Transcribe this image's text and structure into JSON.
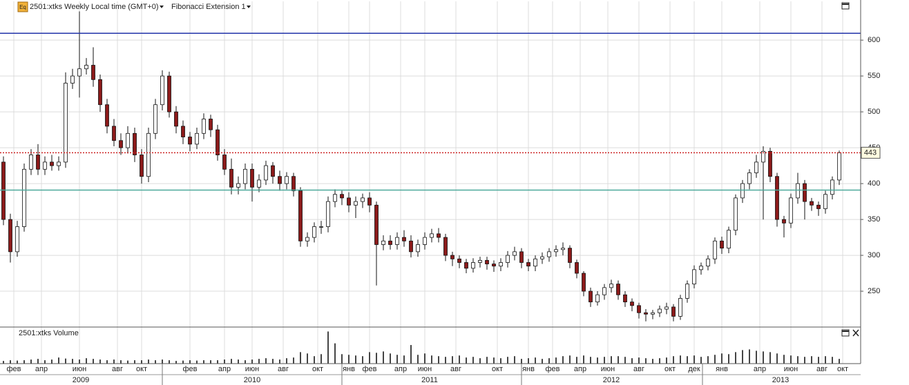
{
  "chart_data": {
    "type": "candlestick",
    "icon": "Eq",
    "title": "2501:xtks Weekly Local time (GMT+0)",
    "indicator": "Fibonacci Extension 1",
    "volume_title": "2501:xtks Volume",
    "up_color": "#ffffff",
    "down_color": "#8b1a1a",
    "volume_color": "#444444",
    "grid": true,
    "ylim": [
      201,
      654
    ],
    "yticks": [
      250,
      300,
      350,
      400,
      450,
      500,
      550,
      600
    ],
    "xlim": [
      0,
      249.2
    ],
    "xticks": [
      {
        "value": 4,
        "label": "фев"
      },
      {
        "value": 12,
        "label": "апр"
      },
      {
        "value": 23,
        "label": "июн"
      },
      {
        "value": 34,
        "label": "авг"
      },
      {
        "value": 41,
        "label": "окт"
      },
      {
        "value": 55,
        "label": "фев"
      },
      {
        "value": 65,
        "label": "апр"
      },
      {
        "value": 73,
        "label": "июн"
      },
      {
        "value": 82,
        "label": "авг"
      },
      {
        "value": 92,
        "label": "окт"
      },
      {
        "value": 101,
        "label": "янв"
      },
      {
        "value": 107,
        "label": "фев"
      },
      {
        "value": 116,
        "label": "апр"
      },
      {
        "value": 123,
        "label": "июн"
      },
      {
        "value": 132,
        "label": "авг"
      },
      {
        "value": 144,
        "label": "окт"
      },
      {
        "value": 153,
        "label": "янв"
      },
      {
        "value": 160,
        "label": "фев"
      },
      {
        "value": 168,
        "label": "апр"
      },
      {
        "value": 176,
        "label": "июн"
      },
      {
        "value": 185,
        "label": "авг"
      },
      {
        "value": 194,
        "label": "окт"
      },
      {
        "value": 201,
        "label": "дек"
      },
      {
        "value": 209,
        "label": "янв"
      },
      {
        "value": 220,
        "label": "апр"
      },
      {
        "value": 229,
        "label": "июн"
      },
      {
        "value": 238,
        "label": "авг"
      },
      {
        "value": 244,
        "label": "окт"
      }
    ],
    "year_labels": [
      {
        "value": 23.4,
        "label": "2009"
      },
      {
        "value": 73,
        "label": "2010"
      },
      {
        "value": 124.4,
        "label": "2011"
      },
      {
        "value": 177,
        "label": "2012"
      },
      {
        "value": 226,
        "label": "2013"
      }
    ],
    "year_breaks": [
      47,
      99,
      151,
      203.4
    ],
    "levels": [
      {
        "value": 609.5,
        "color": "#2233aa",
        "style": "solid"
      },
      {
        "value": 443,
        "color": "#cc2222",
        "style": "dotted"
      },
      {
        "value": 391,
        "color": "#4aa89a",
        "style": "solid"
      }
    ],
    "open": [
      430,
      350,
      305,
      340,
      420,
      440,
      420,
      430,
      425,
      430,
      540,
      550,
      560,
      565,
      545,
      510,
      480,
      460,
      450,
      470,
      440,
      410,
      470,
      510,
      550,
      500,
      480,
      465,
      455,
      470,
      490,
      475,
      440,
      420,
      395,
      400,
      420,
      395,
      405,
      425,
      410,
      400,
      410,
      390,
      320,
      325,
      340,
      340,
      375,
      385,
      380,
      370,
      375,
      380,
      370,
      315,
      320,
      315,
      325,
      320,
      305,
      315,
      325,
      330,
      325,
      300,
      295,
      290,
      282,
      290,
      293,
      288,
      285,
      290,
      300,
      305,
      290,
      285,
      295,
      298,
      305,
      308,
      310,
      290,
      275,
      250,
      235,
      245,
      255,
      260,
      245,
      235,
      230,
      220,
      218,
      220,
      225,
      228,
      215,
      240,
      260,
      280,
      285,
      295,
      320,
      310,
      335,
      380,
      400,
      415,
      430,
      445,
      410,
      350,
      345,
      380,
      400,
      375,
      370,
      365,
      385,
      405
    ],
    "high": [
      438,
      358,
      348,
      428,
      448,
      455,
      438,
      440,
      438,
      555,
      560,
      640,
      575,
      590,
      552,
      518,
      490,
      470,
      480,
      478,
      448,
      478,
      518,
      558,
      556,
      508,
      488,
      472,
      478,
      498,
      496,
      482,
      448,
      435,
      410,
      428,
      428,
      413,
      432,
      430,
      418,
      416,
      415,
      395,
      332,
      346,
      348,
      382,
      392,
      390,
      388,
      382,
      386,
      388,
      375,
      328,
      328,
      332,
      335,
      328,
      322,
      332,
      337,
      338,
      330,
      305,
      300,
      295,
      296,
      298,
      298,
      293,
      296,
      306,
      312,
      310,
      295,
      300,
      304,
      310,
      314,
      318,
      314,
      294,
      278,
      255,
      250,
      260,
      266,
      265,
      250,
      240,
      234,
      225,
      224,
      230,
      234,
      232,
      245,
      265,
      286,
      290,
      300,
      325,
      326,
      340,
      385,
      405,
      420,
      440,
      452,
      450,
      415,
      355,
      386,
      415,
      405,
      380,
      375,
      390,
      410,
      446
    ],
    "low": [
      342,
      290,
      298,
      333,
      412,
      412,
      412,
      418,
      418,
      422,
      532,
      520,
      552,
      535,
      500,
      470,
      452,
      440,
      442,
      430,
      400,
      402,
      462,
      502,
      492,
      470,
      455,
      445,
      448,
      462,
      465,
      432,
      412,
      385,
      385,
      392,
      375,
      388,
      398,
      400,
      390,
      392,
      382,
      312,
      312,
      318,
      330,
      332,
      367,
      370,
      360,
      352,
      366,
      360,
      258,
      307,
      308,
      308,
      312,
      297,
      298,
      308,
      318,
      318,
      292,
      285,
      282,
      275,
      276,
      283,
      280,
      277,
      278,
      283,
      293,
      282,
      278,
      278,
      288,
      291,
      298,
      300,
      282,
      268,
      243,
      228,
      230,
      238,
      248,
      238,
      228,
      222,
      212,
      208,
      211,
      214,
      218,
      208,
      210,
      234,
      254,
      273,
      279,
      288,
      302,
      303,
      328,
      373,
      392,
      408,
      350,
      402,
      340,
      325,
      338,
      372,
      350,
      362,
      355,
      358,
      378,
      398
    ],
    "close": [
      350,
      305,
      340,
      420,
      440,
      420,
      430,
      425,
      430,
      540,
      550,
      560,
      565,
      545,
      510,
      480,
      460,
      450,
      470,
      440,
      410,
      470,
      510,
      550,
      500,
      480,
      465,
      455,
      470,
      490,
      475,
      440,
      420,
      395,
      400,
      420,
      395,
      405,
      425,
      410,
      400,
      410,
      390,
      320,
      325,
      340,
      340,
      375,
      385,
      380,
      370,
      375,
      380,
      370,
      315,
      320,
      315,
      325,
      320,
      305,
      315,
      325,
      330,
      325,
      300,
      295,
      290,
      282,
      290,
      293,
      288,
      285,
      290,
      300,
      305,
      290,
      285,
      295,
      298,
      305,
      308,
      310,
      290,
      275,
      250,
      235,
      245,
      255,
      260,
      245,
      235,
      230,
      220,
      218,
      220,
      225,
      228,
      215,
      240,
      260,
      280,
      285,
      295,
      320,
      310,
      335,
      380,
      400,
      415,
      430,
      445,
      410,
      350,
      345,
      380,
      400,
      375,
      370,
      365,
      385,
      405,
      443
    ],
    "volume_ylim": [
      0,
      100
    ],
    "volume": [
      8,
      10,
      9,
      10,
      12,
      14,
      10,
      12,
      18,
      15,
      14,
      12,
      16,
      14,
      12,
      10,
      12,
      10,
      9,
      10,
      10,
      12,
      10,
      12,
      10,
      8,
      9,
      10,
      9,
      10,
      10,
      10,
      12,
      14,
      12,
      10,
      12,
      14,
      16,
      14,
      12,
      16,
      18,
      34,
      30,
      22,
      28,
      95,
      60,
      28,
      26,
      24,
      22,
      34,
      32,
      36,
      30,
      26,
      24,
      55,
      26,
      30,
      24,
      22,
      20,
      22,
      24,
      18,
      20,
      16,
      20,
      18,
      16,
      20,
      22,
      14,
      16,
      18,
      14,
      16,
      18,
      22,
      24,
      20,
      24,
      20,
      18,
      20,
      22,
      22,
      20,
      16,
      18,
      16,
      14,
      16,
      18,
      22,
      24,
      22,
      24,
      20,
      22,
      26,
      30,
      28,
      34,
      40,
      42,
      38,
      36,
      34,
      30,
      26,
      24,
      22,
      20,
      22,
      20,
      22,
      20,
      14
    ]
  }
}
